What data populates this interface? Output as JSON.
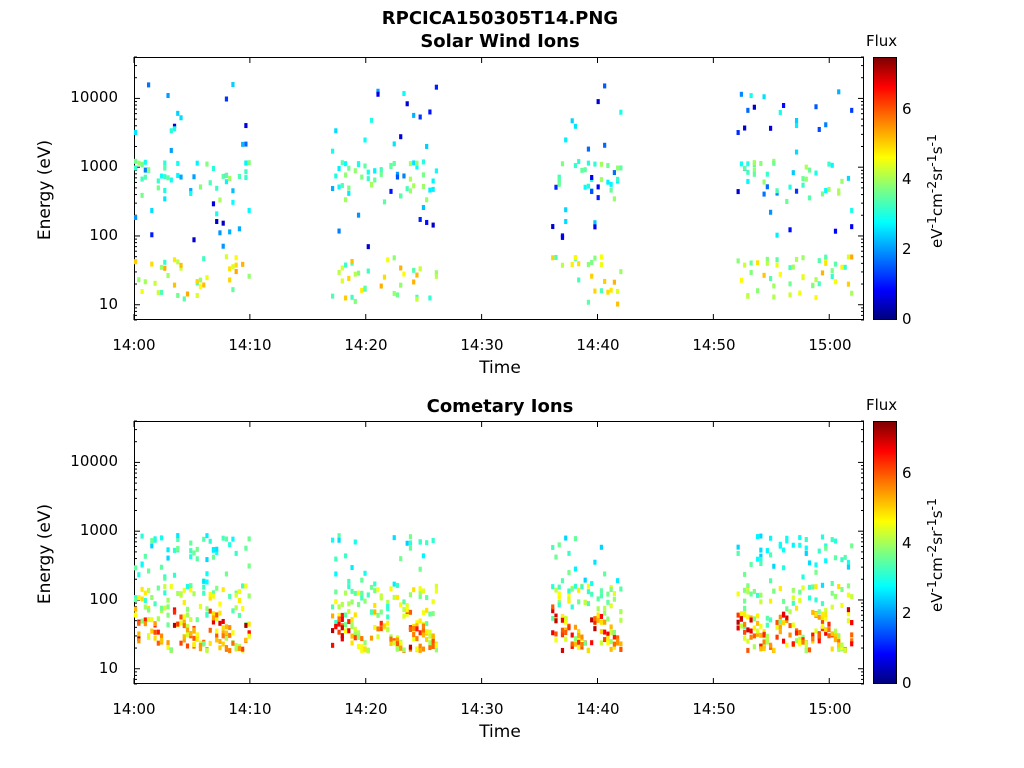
{
  "figure_title": "RPCICA150305T14.PNG",
  "chart_data": [
    {
      "type": "heatmap",
      "title": "Solar Wind Ions",
      "xlabel": "Time",
      "ylabel": "Energy (eV)",
      "yscale": "log",
      "ylim": [
        6,
        40000
      ],
      "xlim": [
        "14:00",
        "15:03"
      ],
      "x_ticks": [
        "14:00",
        "14:10",
        "14:20",
        "14:30",
        "14:40",
        "14:50",
        "15:00"
      ],
      "y_ticks": [
        "10",
        "100",
        "1000",
        "10000"
      ],
      "colorbar": {
        "label": "Flux",
        "units": "eV-1cm-2sr-1s-1",
        "ticks": [
          "0",
          "2",
          "4",
          "6"
        ],
        "range": [
          0,
          7.3
        ]
      },
      "activity_intervals": [
        [
          "14:00",
          "14:10"
        ],
        [
          "14:17",
          "14:26"
        ],
        [
          "14:36",
          "14:42"
        ],
        [
          "14:52",
          "15:02"
        ]
      ]
    },
    {
      "type": "heatmap",
      "title": "Cometary Ions",
      "xlabel": "Time",
      "ylabel": "Energy (eV)",
      "yscale": "log",
      "ylim": [
        6,
        40000
      ],
      "xlim": [
        "14:00",
        "15:03"
      ],
      "x_ticks": [
        "14:00",
        "14:10",
        "14:20",
        "14:30",
        "14:40",
        "14:50",
        "15:00"
      ],
      "y_ticks": [
        "10",
        "100",
        "1000",
        "10000"
      ],
      "colorbar": {
        "label": "Flux",
        "units": "eV-1cm-2sr-1s-1",
        "ticks": [
          "0",
          "2",
          "4",
          "6"
        ],
        "range": [
          0,
          7.3
        ]
      },
      "activity_intervals": [
        [
          "14:00",
          "14:10"
        ],
        [
          "14:17",
          "14:26"
        ],
        [
          "14:36",
          "14:42"
        ],
        [
          "14:52",
          "15:02"
        ]
      ]
    }
  ]
}
